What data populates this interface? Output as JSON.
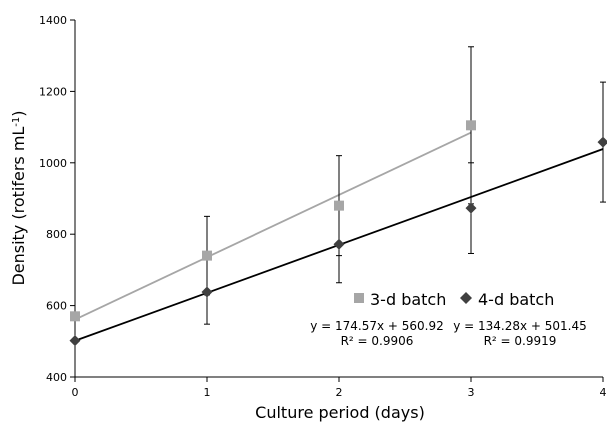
{
  "chart_data": {
    "type": "scatter",
    "xlabel": "Culture period (days)",
    "ylabel": "Density (rotifers mL",
    "ylabel_sup": "-1",
    "ylabel_close": ")",
    "xlim": [
      0,
      4
    ],
    "ylim": [
      400,
      1400
    ],
    "xticks": [
      0,
      1,
      2,
      3,
      4
    ],
    "yticks": [
      400,
      600,
      800,
      1000,
      1200,
      1400
    ],
    "grid": false,
    "legend_position": "center-right",
    "series": [
      {
        "name": "3-d batch",
        "marker": "square",
        "color": "#a6a6a6",
        "x": [
          0,
          1,
          2,
          3
        ],
        "y": [
          570,
          740,
          880,
          1105
        ],
        "err": [
          0,
          110,
          140,
          220
        ],
        "trend": {
          "slope": 174.57,
          "intercept": 560.92,
          "x_range": [
            0,
            3
          ]
        },
        "equation": "y = 174.57x + 560.92",
        "r2": "R² = 0.9906"
      },
      {
        "name": "4-d batch",
        "marker": "diamond",
        "color": "#404040",
        "x": [
          0,
          1,
          2,
          3,
          4
        ],
        "y": [
          502,
          638,
          772,
          873,
          1058
        ],
        "err": [
          0,
          90,
          108,
          127,
          168
        ],
        "trend": {
          "slope": 134.28,
          "intercept": 501.45,
          "x_range": [
            0,
            4
          ]
        },
        "equation": "y = 134.28x + 501.45",
        "r2": "R² = 0.9919"
      }
    ]
  }
}
